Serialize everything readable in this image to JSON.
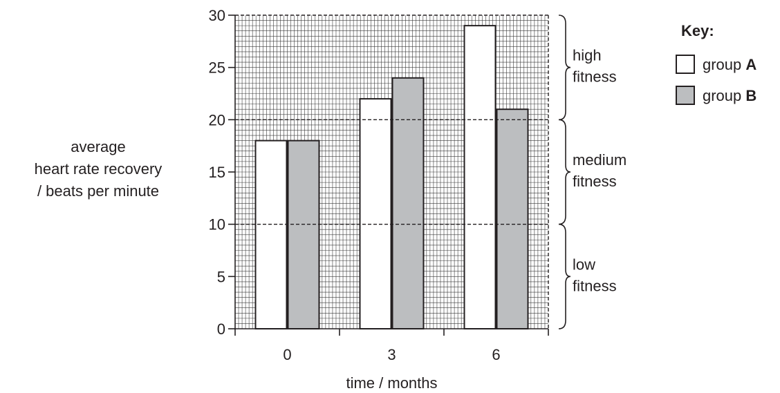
{
  "chart_data": {
    "type": "bar",
    "title": "",
    "xlabel": "time / months",
    "ylabel_lines": [
      "average",
      "heart rate recovery",
      "/ beats per minute"
    ],
    "categories": [
      "0",
      "3",
      "6"
    ],
    "series": [
      {
        "name": "group A",
        "values": [
          18,
          22,
          29
        ],
        "color": "#ffffff"
      },
      {
        "name": "group B",
        "values": [
          18,
          24,
          21
        ],
        "color": "#bcbec0"
      }
    ],
    "ylim": [
      0,
      30
    ],
    "yticks": [
      0,
      5,
      10,
      15,
      20,
      25,
      30
    ],
    "grid": true,
    "thresholds": [
      10,
      20
    ],
    "bands": [
      {
        "lines": [
          "high",
          "fitness"
        ],
        "from": 20,
        "to": 30
      },
      {
        "lines": [
          "medium",
          "fitness"
        ],
        "from": 10,
        "to": 20
      },
      {
        "lines": [
          "low",
          "fitness"
        ],
        "from": 0,
        "to": 10
      }
    ],
    "legend": {
      "title": "Key:",
      "placement": "top-right",
      "entries": [
        {
          "prefix": "group ",
          "letter": "A",
          "color": "#ffffff"
        },
        {
          "prefix": "group ",
          "letter": "B",
          "color": "#bcbec0"
        }
      ]
    }
  }
}
